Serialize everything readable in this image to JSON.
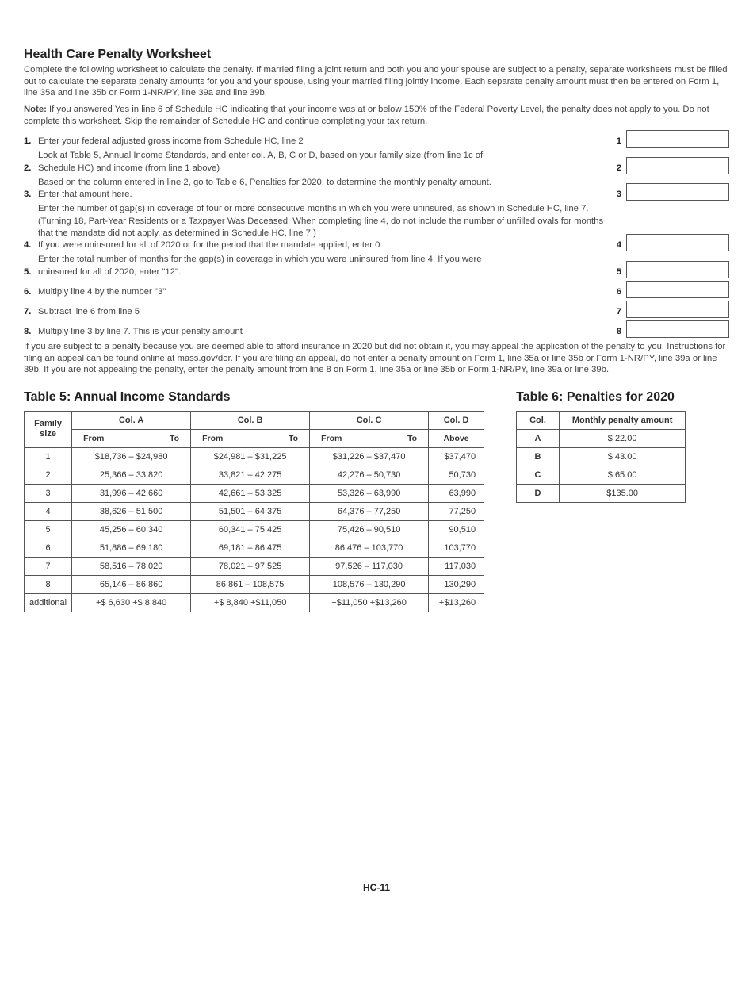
{
  "title": "Health Care Penalty Worksheet",
  "intro": "Complete the following worksheet to calculate the penalty. If married filing a joint return and both you and your spouse are subject to a penalty, separate worksheets must be filled out to calculate the separate penalty amounts for you and your spouse, using your married filing jointly income. Each separate penalty amount must then be entered on Form 1, line 35a and line 35b or Form 1-NR/PY, line 39a and line 39b.",
  "note_label": "Note:",
  "note": " If you answered Yes in line 6 of Schedule HC indicating that your income was at or below 150% of the Federal Poverty Level, the penalty does not apply to you. Do not complete this worksheet. Skip the remainder of Schedule HC and continue completing your tax return.",
  "lines": [
    {
      "n": "1.",
      "pre": "",
      "last": "Enter your federal adjusted gross income from Schedule HC, line 2",
      "rn": "1"
    },
    {
      "n": "2.",
      "pre": "Look at Table 5, Annual Income Standards, and enter col. A, B, C or D, based on your family size (from line 1c of",
      "last": "Schedule HC) and income (from line 1 above)",
      "rn": "2"
    },
    {
      "n": "3.",
      "pre": "Based on the column entered in line 2, go to Table 6, Penalties for 2020, to determine the monthly penalty amount.",
      "last": "Enter that amount here.",
      "rn": "3"
    },
    {
      "n": "4.",
      "pre": "Enter the number of gap(s) in coverage of four or more consecutive months in which you were uninsured, as shown in Schedule HC, line 7. (Turning 18, Part-Year Residents or a Taxpayer Was Deceased: When completing line 4, do not include the number of unfilled ovals for months that the mandate did not apply, as determined in Schedule HC, line 7.)",
      "last": "If you were uninsured for all of 2020 or for the period that the mandate applied, enter 0",
      "rn": "4"
    },
    {
      "n": "5.",
      "pre": "Enter the total number of months for the gap(s) in coverage in which you were uninsured from line 4. If you were",
      "last": "uninsured for all of 2020, enter \"12\".",
      "rn": "5"
    },
    {
      "n": "6.",
      "pre": "",
      "last": "Multiply line 4 by the number \"3\"",
      "rn": "6"
    },
    {
      "n": "7.",
      "pre": "",
      "last": "Subtract line 6 from line 5",
      "rn": "7"
    },
    {
      "n": "8.",
      "pre": "",
      "last": "Multiply line 3 by line 7. This is your penalty amount",
      "rn": "8"
    }
  ],
  "closing": "If you are subject to a penalty because you are deemed able to afford insurance in 2020 but did not obtain it, you may appeal the application of the penalty to you. Instructions for filing an appeal can be found online at mass.gov/dor. If you are filing an appeal, do not enter a penalty amount on Form 1, line 35a or line 35b or Form 1-NR/PY, line 39a or line 39b. If you are not appealing the penalty, enter the penalty amount from line 8 on Form 1, line 35a or line 35b or Form 1-NR/PY, line 39a or line 39b.",
  "table5": {
    "title": "Table 5: Annual Income Standards",
    "headers": {
      "family": "Family size",
      "a": "Col. A",
      "b": "Col. B",
      "c": "Col. C",
      "d": "Col. D",
      "from": "From",
      "to": "To",
      "above": "Above"
    },
    "rows": [
      {
        "fam": "1",
        "a": "$18,736   –   $24,980",
        "b": "$24,981   –   $31,225",
        "c": "$31,226   –   $37,470",
        "d": "$37,470"
      },
      {
        "fam": "2",
        "a": "25,366   –   33,820",
        "b": "33,821   –   42,275",
        "c": "42,276   –   50,730",
        "d": "50,730"
      },
      {
        "fam": "3",
        "a": "31,996   –   42,660",
        "b": "42,661   –   53,325",
        "c": "53,326   –   63,990",
        "d": "63,990"
      },
      {
        "fam": "4",
        "a": "38,626   –   51,500",
        "b": "51,501   –   64,375",
        "c": "64,376   –   77,250",
        "d": "77,250"
      },
      {
        "fam": "5",
        "a": "45,256   –   60,340",
        "b": "60,341   –   75,425",
        "c": "75,426   –   90,510",
        "d": "90,510"
      },
      {
        "fam": "6",
        "a": "51,886   –   69,180",
        "b": "69,181   –   86,475",
        "c": "86,476   –   103,770",
        "d": "103,770"
      },
      {
        "fam": "7",
        "a": "58,516   –   78,020",
        "b": "78,021   –   97,525",
        "c": "97,526   –   117,030",
        "d": "117,030"
      },
      {
        "fam": "8",
        "a": "65,146   –   86,860",
        "b": "86,861   –   108,575",
        "c": "108,576   –   130,290",
        "d": "130,290"
      },
      {
        "fam": "additional",
        "a": "+$  6,630      +$  8,840",
        "b": "+$  8,840      +$11,050",
        "c": "+$11,050      +$13,260",
        "d": "+$13,260"
      }
    ]
  },
  "table6": {
    "title": "Table 6: Penalties for 2020",
    "headers": {
      "col": "Col.",
      "amt": "Monthly penalty amount"
    },
    "rows": [
      {
        "col": "A",
        "amt": "$  22.00"
      },
      {
        "col": "B",
        "amt": "$  43.00"
      },
      {
        "col": "C",
        "amt": "$  65.00"
      },
      {
        "col": "D",
        "amt": "$135.00"
      }
    ]
  },
  "footer": "HC-11"
}
